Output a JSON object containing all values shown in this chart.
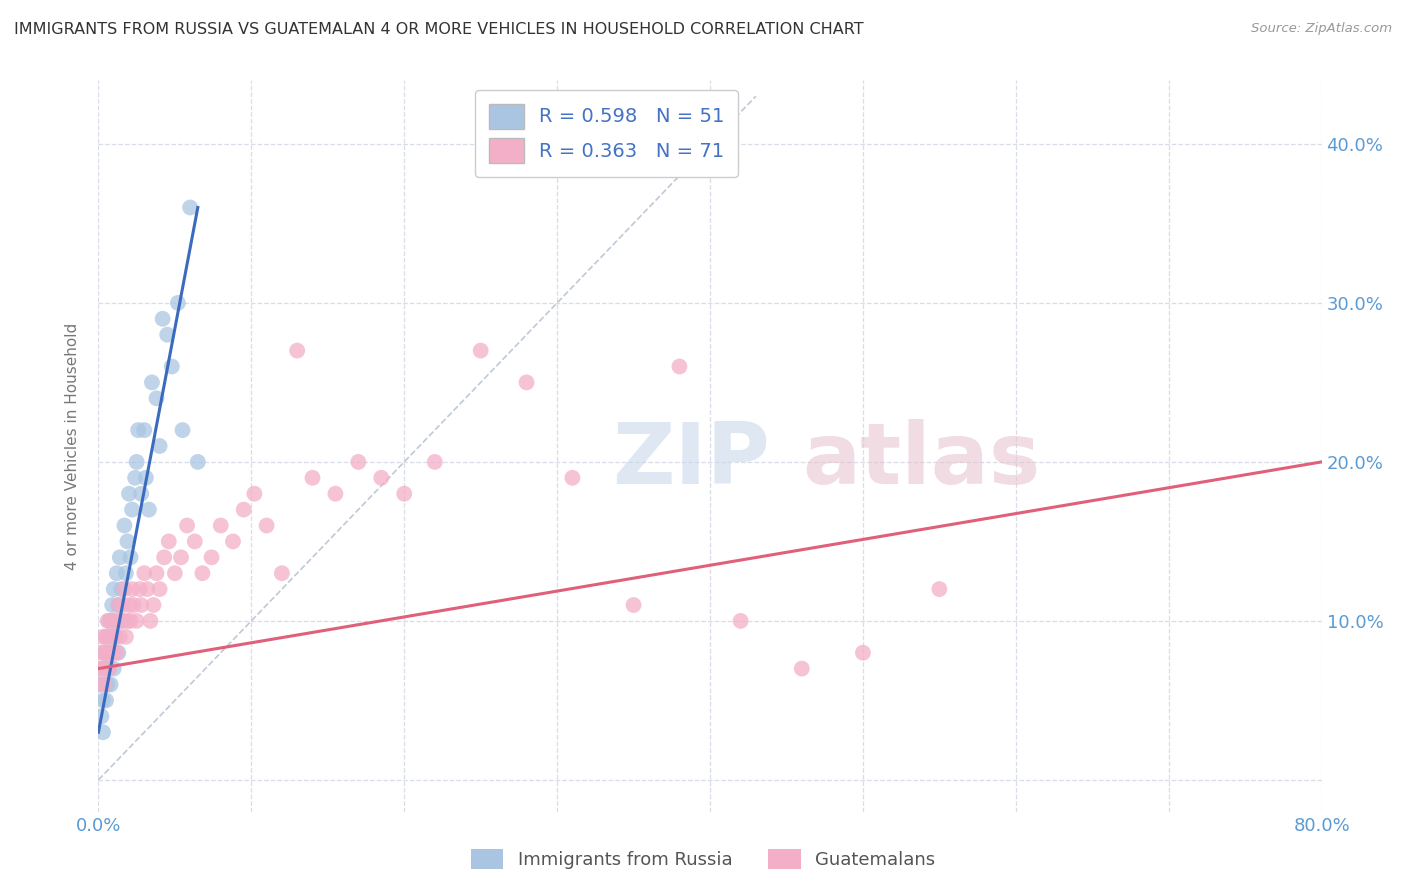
{
  "title": "IMMIGRANTS FROM RUSSIA VS GUATEMALAN 4 OR MORE VEHICLES IN HOUSEHOLD CORRELATION CHART",
  "source": "Source: ZipAtlas.com",
  "ylabel": "4 or more Vehicles in Household",
  "ytick_values": [
    0.0,
    0.1,
    0.2,
    0.3,
    0.4
  ],
  "xlim": [
    0.0,
    0.8
  ],
  "ylim": [
    -0.02,
    0.44
  ],
  "series1_label": "Immigrants from Russia",
  "series1_R": "0.598",
  "series1_N": "51",
  "series1_color": "#aac5e2",
  "series1_line_color": "#3a6bbf",
  "series1_x": [
    0.001,
    0.002,
    0.002,
    0.003,
    0.003,
    0.004,
    0.004,
    0.005,
    0.005,
    0.005,
    0.006,
    0.006,
    0.007,
    0.007,
    0.008,
    0.008,
    0.009,
    0.009,
    0.01,
    0.01,
    0.01,
    0.011,
    0.012,
    0.013,
    0.013,
    0.014,
    0.015,
    0.016,
    0.017,
    0.018,
    0.019,
    0.02,
    0.021,
    0.022,
    0.024,
    0.025,
    0.026,
    0.028,
    0.03,
    0.031,
    0.033,
    0.035,
    0.038,
    0.04,
    0.042,
    0.045,
    0.048,
    0.052,
    0.055,
    0.06,
    0.065
  ],
  "series1_y": [
    0.06,
    0.04,
    0.07,
    0.05,
    0.03,
    0.06,
    0.08,
    0.07,
    0.05,
    0.09,
    0.06,
    0.08,
    0.07,
    0.1,
    0.08,
    0.06,
    0.09,
    0.11,
    0.07,
    0.1,
    0.12,
    0.09,
    0.13,
    0.11,
    0.08,
    0.14,
    0.12,
    0.1,
    0.16,
    0.13,
    0.15,
    0.18,
    0.14,
    0.17,
    0.19,
    0.2,
    0.22,
    0.18,
    0.22,
    0.19,
    0.17,
    0.25,
    0.24,
    0.21,
    0.29,
    0.28,
    0.26,
    0.3,
    0.22,
    0.36,
    0.2
  ],
  "series1_line_x": [
    0.0,
    0.065
  ],
  "series1_line_y": [
    0.03,
    0.36
  ],
  "series2_label": "Guatemalans",
  "series2_R": "0.363",
  "series2_N": "71",
  "series2_color": "#f4afc8",
  "series2_line_color": "#e0607a",
  "series2_x": [
    0.001,
    0.002,
    0.002,
    0.003,
    0.003,
    0.004,
    0.004,
    0.005,
    0.005,
    0.006,
    0.006,
    0.007,
    0.007,
    0.008,
    0.008,
    0.009,
    0.01,
    0.01,
    0.011,
    0.012,
    0.012,
    0.013,
    0.014,
    0.015,
    0.016,
    0.017,
    0.018,
    0.019,
    0.02,
    0.021,
    0.022,
    0.023,
    0.025,
    0.027,
    0.028,
    0.03,
    0.032,
    0.034,
    0.036,
    0.038,
    0.04,
    0.043,
    0.046,
    0.05,
    0.054,
    0.058,
    0.063,
    0.068,
    0.074,
    0.08,
    0.088,
    0.095,
    0.102,
    0.11,
    0.12,
    0.13,
    0.14,
    0.155,
    0.17,
    0.185,
    0.2,
    0.22,
    0.25,
    0.28,
    0.31,
    0.35,
    0.38,
    0.42,
    0.46,
    0.5,
    0.55
  ],
  "series2_y": [
    0.07,
    0.08,
    0.06,
    0.09,
    0.07,
    0.08,
    0.06,
    0.09,
    0.07,
    0.1,
    0.08,
    0.09,
    0.07,
    0.1,
    0.08,
    0.09,
    0.08,
    0.1,
    0.09,
    0.1,
    0.08,
    0.11,
    0.09,
    0.1,
    0.11,
    0.12,
    0.09,
    0.1,
    0.11,
    0.1,
    0.12,
    0.11,
    0.1,
    0.12,
    0.11,
    0.13,
    0.12,
    0.1,
    0.11,
    0.13,
    0.12,
    0.14,
    0.15,
    0.13,
    0.14,
    0.16,
    0.15,
    0.13,
    0.14,
    0.16,
    0.15,
    0.17,
    0.18,
    0.16,
    0.13,
    0.27,
    0.19,
    0.18,
    0.2,
    0.19,
    0.18,
    0.2,
    0.27,
    0.25,
    0.19,
    0.11,
    0.26,
    0.1,
    0.07,
    0.08,
    0.12
  ],
  "series2_line_x": [
    0.0,
    0.8
  ],
  "series2_line_y": [
    0.07,
    0.2
  ],
  "diagonal_color": "#c0c8d8",
  "background_color": "#ffffff",
  "grid_color": "#d8dde8",
  "title_color": "#333333",
  "axis_label_color": "#5b9bd5",
  "right_yaxis_color": "#5b9bd5"
}
